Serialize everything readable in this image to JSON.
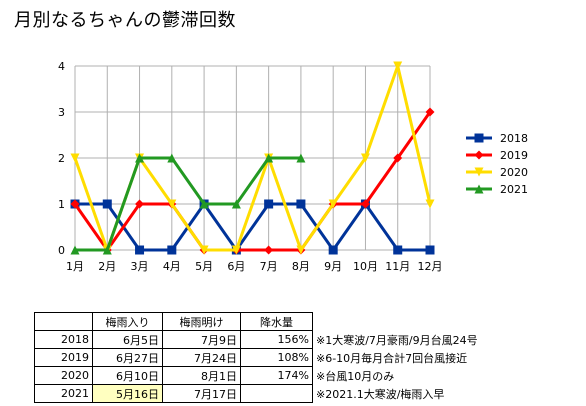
{
  "title": "月別なるちゃんの鬱滞回数",
  "colors": {
    "2018": "#003399",
    "2019": "#ff0000",
    "2020": "#ffdd00",
    "2021": "#229922",
    "grid": "#b0b0b0",
    "highlight": "#ffffc0"
  },
  "chart_data": {
    "type": "line",
    "title": "月別なるちゃんの鬱滞回数",
    "categories": [
      "1月",
      "2月",
      "3月",
      "4月",
      "5月",
      "6月",
      "7月",
      "8月",
      "9月",
      "10月",
      "11月",
      "12月"
    ],
    "ylim": [
      0,
      4
    ],
    "yticks": [
      0,
      1,
      2,
      3,
      4
    ],
    "grid": true,
    "legend": "right",
    "series": [
      {
        "name": "2018",
        "marker": "square",
        "values": [
          1,
          1,
          0,
          0,
          1,
          0,
          1,
          1,
          0,
          1,
          0,
          0
        ]
      },
      {
        "name": "2019",
        "marker": "diamond",
        "values": [
          1,
          0,
          1,
          1,
          0,
          0,
          0,
          0,
          1,
          1,
          2,
          3
        ]
      },
      {
        "name": "2020",
        "marker": "triangle-down",
        "values": [
          2,
          0,
          2,
          1,
          0,
          0,
          2,
          0,
          1,
          2,
          4,
          1
        ]
      },
      {
        "name": "2021",
        "marker": "triangle-up",
        "values": [
          0,
          0,
          2,
          2,
          1,
          1,
          2,
          2,
          null,
          null,
          null,
          null
        ]
      }
    ]
  },
  "table": {
    "headers": [
      "",
      "梅雨入り",
      "梅雨明け",
      "降水量",
      ""
    ],
    "rows": [
      {
        "year": "2018",
        "start": "6月5日",
        "end": "7月9日",
        "rain": "156%",
        "note": "※1大寒波/7月豪雨/9月台風24号",
        "highlight": false
      },
      {
        "year": "2019",
        "start": "6月27日",
        "end": "7月24日",
        "rain": "108%",
        "note": "※6-10月毎月合計7回台風接近",
        "highlight": false
      },
      {
        "year": "2020",
        "start": "6月10日",
        "end": "8月1日",
        "rain": "174%",
        "note": "※台風10月のみ",
        "highlight": false
      },
      {
        "year": "2021",
        "start": "5月16日",
        "end": "7月17日",
        "rain": "",
        "note": "※2021.1大寒波/梅雨入早",
        "highlight": true
      }
    ]
  }
}
